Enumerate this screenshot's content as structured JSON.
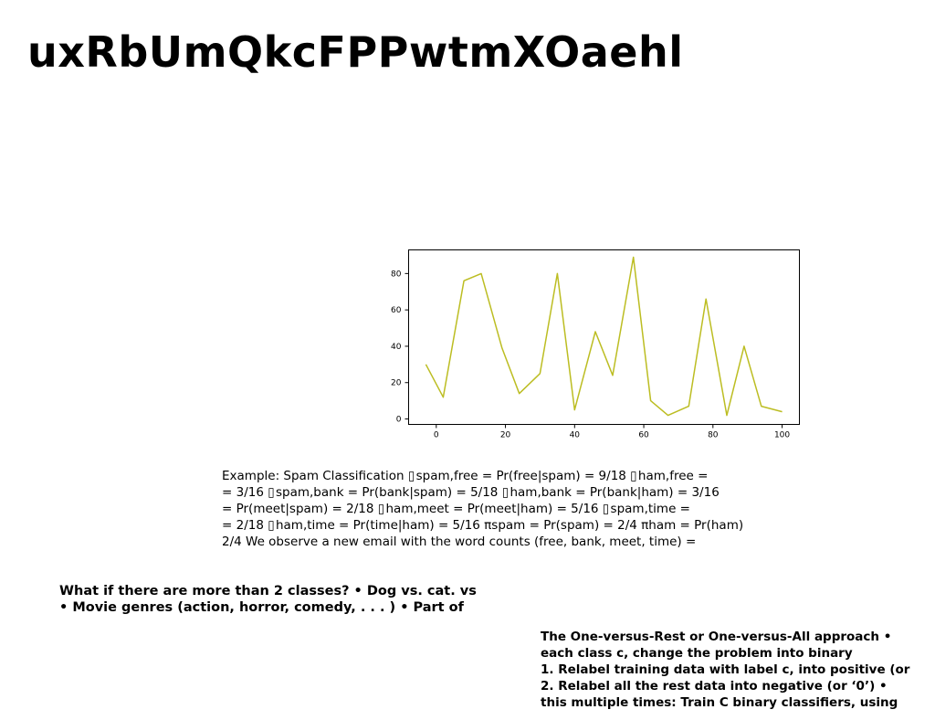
{
  "slide": {
    "title": "uxRbUmQkcFPPwtmXOaehl"
  },
  "chart_data": {
    "type": "line",
    "color": "#bcbd22",
    "x": [
      -3,
      2,
      8,
      13,
      19,
      24,
      30,
      35,
      40,
      46,
      51,
      57,
      62,
      67,
      73,
      78,
      84,
      89,
      94,
      100
    ],
    "y": [
      30,
      12,
      76,
      80,
      39,
      14,
      25,
      80,
      5,
      48,
      24,
      89,
      10,
      2,
      7,
      66,
      2,
      40,
      7,
      4
    ],
    "xticks": [
      0,
      20,
      40,
      60,
      80,
      100
    ],
    "yticks": [
      0,
      20,
      40,
      60,
      80
    ],
    "xlim": [
      -8,
      105
    ],
    "ylim": [
      -3,
      93
    ],
    "grid": false,
    "title": "",
    "xlabel": "",
    "ylabel": ""
  },
  "example": {
    "lines": [
      "Example: Spam Classification ▯ spam,free = Pr(free|spam) = 9/18 ▯ ham,free =",
      "= 3/16 ▯ spam,bank = Pr(bank|spam) = 5/18 ▯ ham,bank = Pr(bank|ham) = 3/16",
      "= Pr(meet|spam) = 2/18 ▯ ham,meet = Pr(meet|ham) = 5/16 ▯ spam,time =",
      "= 2/18 ▯ ham,time = Pr(time|ham) = 5/16 πspam = Pr(spam) = 2/4 πham = Pr(ham)",
      "2/4 We observe a new email with the word counts (free, bank, meet, time) ="
    ]
  },
  "classes": {
    "lines": [
      "What if there are more than 2 classes? • Dog vs. cat. vs",
      "• Movie genres (action, horror, comedy, . . . ) • Part of"
    ]
  },
  "ovr": {
    "lines": [
      "The One-versus-Rest or One-versus-All approach •",
      "each class c, change the problem into binary",
      "1. Relabel training data with label c, into positive (or",
      "2. Relabel all the rest data into negative (or ‘0’) •",
      "this multiple times: Train C binary classifiers, using"
    ]
  }
}
